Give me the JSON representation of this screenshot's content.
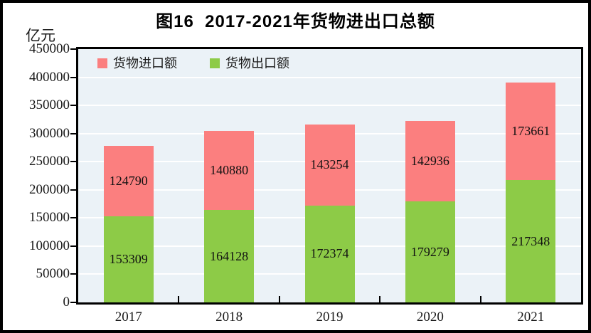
{
  "title": "图16  2017-2021年货物进出口总额",
  "unit_label": "亿元",
  "legend": [
    {
      "key": "import",
      "label": "货物进口额",
      "color": "#fb7f7f"
    },
    {
      "key": "export",
      "label": "货物出口额",
      "color": "#8dcb47"
    }
  ],
  "colors": {
    "frame": "#000000",
    "plot_background": "#ebf2f7",
    "gridline": "#ffffff",
    "axis": "#000000",
    "text": "#1a1a1a",
    "import_bar": "#fb7f7f",
    "export_bar": "#8dcb47"
  },
  "chart_data": {
    "type": "bar",
    "stacked": true,
    "title": "图16  2017-2021年货物进出口总额",
    "ylabel": "亿元",
    "xlabel": "",
    "categories": [
      "2017",
      "2018",
      "2019",
      "2020",
      "2021"
    ],
    "series": [
      {
        "key": "export",
        "name": "货物出口额",
        "color": "#8dcb47",
        "values": [
          153309,
          164128,
          172374,
          179279,
          217348
        ]
      },
      {
        "key": "import",
        "name": "货物进口额",
        "color": "#fb7f7f",
        "values": [
          124790,
          140880,
          143254,
          142936,
          173661
        ]
      }
    ],
    "ylim": [
      0,
      450000
    ],
    "ytick_step": 50000,
    "grid": true,
    "legend_position": "top-left-inside",
    "value_labels": "centered-in-segment"
  }
}
